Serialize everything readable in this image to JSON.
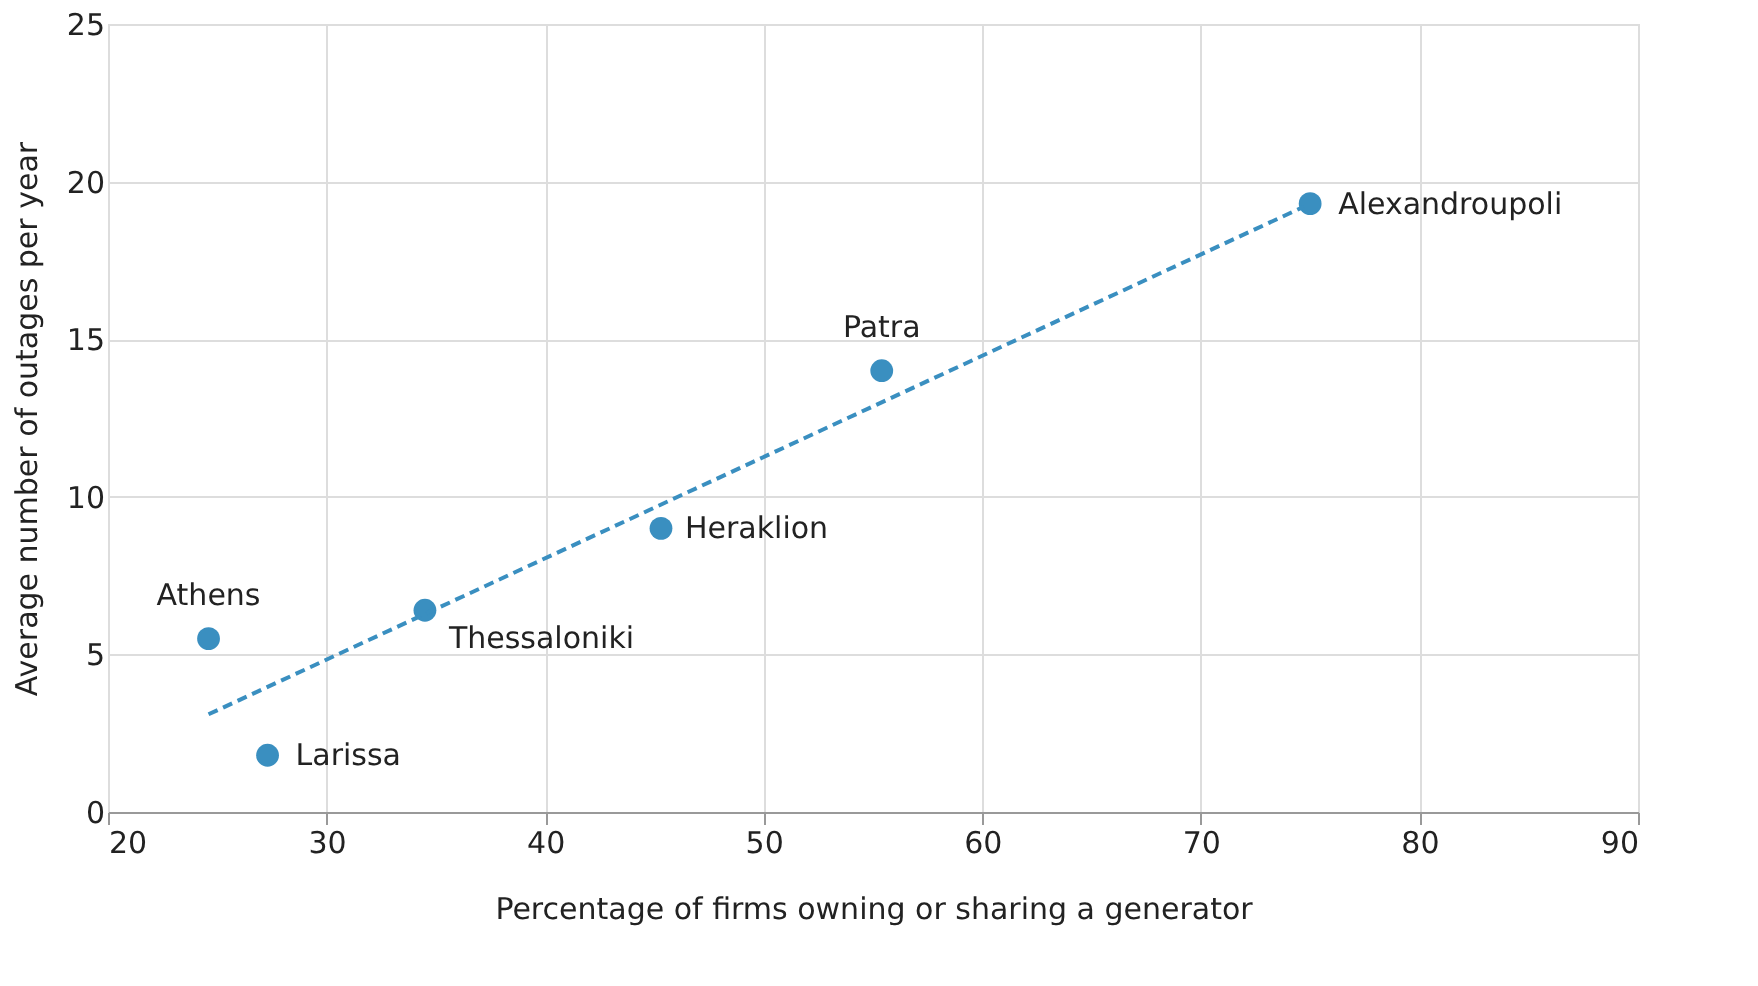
{
  "chart_data": {
    "type": "scatter",
    "xlabel": "Percentage of firms owning or sharing a generator",
    "ylabel": "Average number of outages  per year",
    "series": [
      {
        "color": "#3a8fc0",
        "x": [
          24.6,
          27.3,
          34.5,
          45.3,
          55.4,
          75.0
        ],
        "values": [
          5.5,
          1.8,
          6.4,
          9.0,
          14.0,
          19.3
        ],
        "marker": "circle"
      },
      {
        "type": "line",
        "color": "#3a8fc0",
        "x": [
          24.6,
          74.7
        ],
        "values": [
          3.1,
          19.2
        ],
        "line_style": "dashed"
      }
    ],
    "annotations": [
      {
        "text": "Athens",
        "x": 24.6,
        "y": 5.5
      },
      {
        "text": "Larissa",
        "x": 27.3,
        "y": 1.8
      },
      {
        "text": "Thessaloniki",
        "x": 34.5,
        "y": 6.4
      },
      {
        "text": "Heraklion",
        "x": 45.3,
        "y": 9.0
      },
      {
        "text": "Patra",
        "x": 55.4,
        "y": 14.0
      },
      {
        "text": "Alexandroupoli",
        "x": 75.0,
        "y": 19.3
      }
    ],
    "xlim": [
      20,
      90
    ],
    "xticks": [
      20,
      30,
      40,
      50,
      60,
      70,
      80,
      90
    ],
    "ylim": [
      0,
      25
    ],
    "yticks": [
      0,
      5,
      10,
      15,
      20,
      25
    ],
    "grid": true
  }
}
